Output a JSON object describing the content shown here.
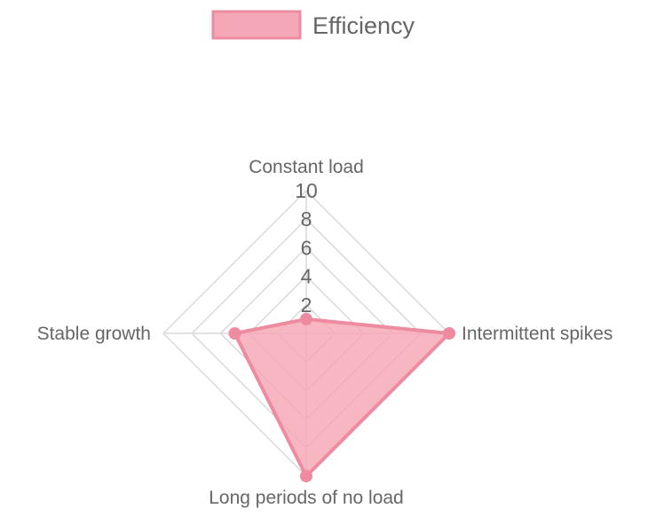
{
  "chart_data": {
    "type": "radar",
    "title": "",
    "categories": [
      "Constant load",
      "Intermittent spikes",
      "Long periods of no load",
      "Stable growth"
    ],
    "series": [
      {
        "name": "Efficiency",
        "values": [
          1,
          10,
          10,
          5
        ],
        "fill_color": "#f4a7b6",
        "line_color": "#ee8ba0",
        "point_color": "#ee8ba0"
      }
    ],
    "r_range": [
      0,
      10
    ],
    "ticks": [
      "2",
      "4",
      "6",
      "8",
      "10"
    ],
    "tick_values": [
      2,
      4,
      6,
      8,
      10
    ],
    "grid": true,
    "legend_position": "top",
    "colors": {
      "grid": "#d9d9d9",
      "text": "#666666"
    }
  }
}
